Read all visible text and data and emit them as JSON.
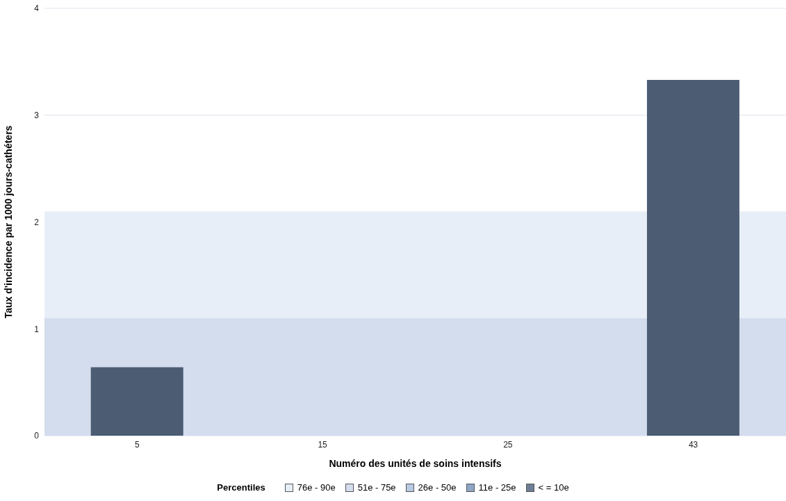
{
  "chart_data": {
    "type": "bar",
    "xlabel": "Numéro des unités de soins intensifs",
    "ylabel": "Taux d'incidence par 1000 jours-cathéters",
    "legend_title": "Percentiles",
    "categories": [
      "5",
      "15",
      "25",
      "43"
    ],
    "series": [
      {
        "color": "#4b5c73",
        "values": [
          0.64,
          0,
          0,
          3.33
        ]
      },
      {
        "name": "26e - 50e",
        "color": "#b8c9e2",
        "values": [
          null,
          null,
          null,
          null
        ]
      },
      {
        "name": "11e - 25e",
        "color": "#8fa5c6",
        "values": [
          null,
          null,
          null,
          null
        ]
      },
      {
        "name": "< = 10e",
        "color": "#6e7e96",
        "values": [
          null,
          null,
          null,
          null
        ]
      }
    ],
    "ylim": [
      0,
      4
    ],
    "yticks": [
      0,
      1,
      2,
      3,
      4
    ],
    "grid": "y",
    "legend": "bottom",
    "bands": [
      {
        "axis": "y",
        "from": 1.1,
        "to": 2.1,
        "label": "76e - 90e",
        "color": "#e8eef7"
      },
      {
        "axis": "y",
        "from": 0,
        "to": 1.1,
        "label": "51e - 75e",
        "color": "#d3ddee"
      }
    ]
  }
}
